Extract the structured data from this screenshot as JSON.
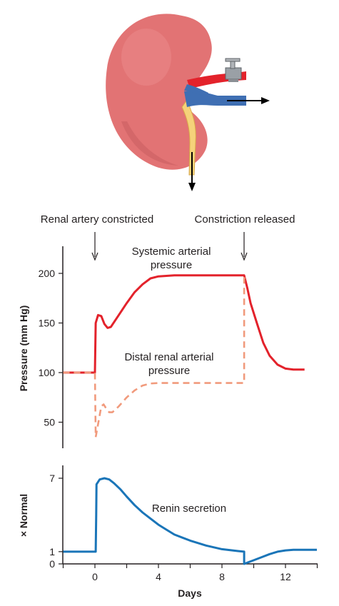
{
  "illustration": {
    "description_icon": "kidney-with-clamped-renal-artery-icon"
  },
  "annotations": {
    "artery_constricted": "Renal artery constricted",
    "constriction_released": "Constriction released"
  },
  "chart_data": [
    {
      "type": "line",
      "ylabel": "Pressure (mm Hg)",
      "xlim": [
        -2,
        14
      ],
      "ylim": [
        25,
        225
      ],
      "yticks": [
        50,
        100,
        150,
        200
      ],
      "grid": false,
      "series": [
        {
          "name": "Systemic arterial pressure",
          "name_lines": [
            "Systemic arterial",
            "pressure"
          ],
          "color": "#e3222b",
          "style": "solid",
          "points": [
            [
              -2,
              100
            ],
            [
              0,
              100
            ],
            [
              0,
              100
            ],
            [
              0.05,
              150
            ],
            [
              0.2,
              158
            ],
            [
              0.4,
              157
            ],
            [
              0.6,
              149
            ],
            [
              0.8,
              145
            ],
            [
              1.0,
              146
            ],
            [
              1.5,
              158
            ],
            [
              2,
              170
            ],
            [
              2.5,
              181
            ],
            [
              3,
              189
            ],
            [
              3.5,
              195
            ],
            [
              4,
              197
            ],
            [
              5,
              198
            ],
            [
              9.4,
              198
            ],
            [
              9.6,
              185
            ],
            [
              9.8,
              170
            ],
            [
              10.2,
              150
            ],
            [
              10.6,
              130
            ],
            [
              11,
              117
            ],
            [
              11.5,
              108
            ],
            [
              12,
              104
            ],
            [
              12.5,
              103
            ],
            [
              13.2,
              103
            ]
          ]
        },
        {
          "name": "Distal renal arterial pressure",
          "name_lines": [
            "Distal renal arterial",
            "pressure"
          ],
          "color": "#f19a7c",
          "style": "dashed",
          "points": [
            [
              -2,
              100
            ],
            [
              0,
              100
            ],
            [
              0,
              100
            ],
            [
              0.05,
              35
            ],
            [
              0.2,
              48
            ],
            [
              0.4,
              66
            ],
            [
              0.55,
              68
            ],
            [
              0.7,
              64
            ],
            [
              0.9,
              60
            ],
            [
              1.1,
              60
            ],
            [
              1.5,
              66
            ],
            [
              2,
              75
            ],
            [
              2.5,
              82
            ],
            [
              3,
              87
            ],
            [
              3.5,
              89
            ],
            [
              4,
              89.5
            ],
            [
              9.4,
              89.5
            ],
            [
              9.4,
              195
            ],
            [
              9.5,
              198
            ]
          ]
        }
      ]
    },
    {
      "type": "line",
      "xlabel": "Days",
      "ylabel": "× Normal",
      "xlim": [
        -2,
        14
      ],
      "ylim": [
        0,
        8
      ],
      "xticks": [
        0,
        4,
        8,
        12
      ],
      "yticks": [
        0,
        1,
        7
      ],
      "grid": false,
      "series": [
        {
          "name": "Renin secretion",
          "color": "#1a75b8",
          "style": "solid",
          "points": [
            [
              -2,
              1
            ],
            [
              0,
              1
            ],
            [
              0.05,
              1
            ],
            [
              0.08,
              4
            ],
            [
              0.1,
              6.5
            ],
            [
              0.3,
              6.9
            ],
            [
              0.6,
              7
            ],
            [
              0.9,
              6.9
            ],
            [
              1.2,
              6.6
            ],
            [
              1.6,
              6.1
            ],
            [
              2,
              5.5
            ],
            [
              2.5,
              4.8
            ],
            [
              3,
              4.2
            ],
            [
              3.5,
              3.7
            ],
            [
              4,
              3.2
            ],
            [
              4.5,
              2.8
            ],
            [
              5,
              2.4
            ],
            [
              6,
              1.9
            ],
            [
              7,
              1.5
            ],
            [
              8,
              1.2
            ],
            [
              9,
              1.05
            ],
            [
              9.4,
              1.0
            ],
            [
              9.4,
              0
            ],
            [
              9.7,
              0.15
            ],
            [
              10,
              0.3
            ],
            [
              10.5,
              0.55
            ],
            [
              11,
              0.8
            ],
            [
              11.5,
              1.0
            ],
            [
              12,
              1.1
            ],
            [
              12.5,
              1.15
            ],
            [
              13,
              1.15
            ],
            [
              14,
              1.15
            ]
          ]
        }
      ]
    }
  ],
  "colors": {
    "axis": "#231f20",
    "kidney": "#e57373",
    "kidney_shadow": "#c85a5f",
    "artery": "#e3222b",
    "vein": "#3f6fb3",
    "ureter": "#f6d37a",
    "clamp": "#9aa0a6"
  }
}
